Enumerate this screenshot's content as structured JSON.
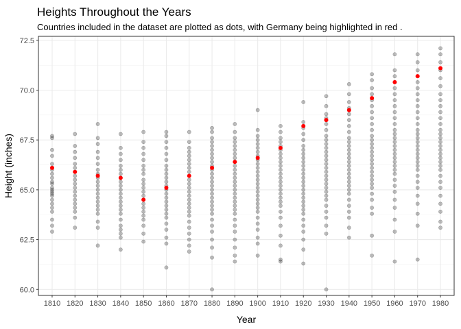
{
  "chart_data": {
    "type": "scatter",
    "title": "Heights Throughout the Years",
    "subtitle": "Countries included in the dataset are plotted as dots, with Germany being highlighted in red .",
    "xlabel": "Year",
    "ylabel": "Height (inches)",
    "x_categories": [
      "1810",
      "1820",
      "1830",
      "1840",
      "1850",
      "1860",
      "1870",
      "1880",
      "1890",
      "1900",
      "1910",
      "1920",
      "1930",
      "1940",
      "1950",
      "1960",
      "1970",
      "1980"
    ],
    "y_ticks": [
      "60.0",
      "62.5",
      "65.0",
      "67.5",
      "70.0",
      "72.5"
    ],
    "ylim": [
      59.7,
      72.7
    ],
    "grid": true,
    "colors": {
      "countries": "#000000",
      "highlight": "#ff0000",
      "grid_major": "#ebebeb",
      "grid_minor": "#f2f2f2",
      "panel_border": "#333333"
    },
    "series": [
      {
        "name": "Germany",
        "values": [
          66.1,
          65.9,
          65.7,
          65.6,
          64.5,
          65.1,
          65.7,
          66.1,
          66.4,
          66.6,
          67.1,
          68.2,
          68.5,
          69.0,
          69.6,
          70.4,
          70.7,
          71.1
        ]
      },
      {
        "values_by_year": {
          "1810": [
            67.7,
            67.6,
            67.0,
            66.7,
            66.3,
            66.0,
            65.8,
            65.6,
            65.4,
            65.3,
            65.1,
            65.0,
            64.9,
            64.8,
            64.7,
            64.5,
            64.3,
            64.1,
            63.9,
            63.5,
            63.2,
            62.9
          ],
          "1820": [
            67.8,
            67.2,
            66.9,
            66.6,
            66.3,
            66.1,
            65.9,
            65.7,
            65.5,
            65.3,
            65.1,
            64.9,
            64.7,
            64.5,
            64.3,
            64.1,
            63.9,
            63.6,
            63.1
          ],
          "1830": [
            68.3,
            67.6,
            67.3,
            66.9,
            66.6,
            66.3,
            66.0,
            65.8,
            65.6,
            65.4,
            65.2,
            65.0,
            64.8,
            64.6,
            64.4,
            64.2,
            64.0,
            63.8,
            63.4,
            63.1,
            62.2
          ],
          "1840": [
            67.8,
            67.1,
            66.8,
            66.5,
            66.2,
            66.0,
            65.8,
            65.6,
            65.4,
            65.2,
            65.0,
            64.8,
            64.6,
            64.4,
            64.2,
            64.0,
            63.8,
            63.5,
            63.2,
            63.0,
            62.8,
            62.6,
            62.0
          ],
          "1850": [
            67.9,
            67.4,
            67.1,
            66.8,
            66.5,
            66.2,
            66.0,
            65.8,
            65.5,
            65.3,
            65.1,
            64.9,
            64.7,
            64.5,
            64.3,
            64.1,
            63.9,
            63.7,
            63.5,
            63.2,
            62.8,
            62.4
          ],
          "1860": [
            67.9,
            67.7,
            67.4,
            67.1,
            66.8,
            66.5,
            66.2,
            66.0,
            65.8,
            65.6,
            65.4,
            65.2,
            65.0,
            64.8,
            64.6,
            64.4,
            64.2,
            64.0,
            63.8,
            63.6,
            63.3,
            63.0,
            62.6,
            62.3,
            61.1
          ],
          "1870": [
            67.9,
            67.4,
            67.1,
            66.9,
            66.7,
            66.5,
            66.3,
            66.1,
            65.9,
            65.7,
            65.5,
            65.3,
            65.1,
            64.9,
            64.7,
            64.5,
            64.3,
            64.1,
            63.9,
            63.7,
            63.4,
            63.1,
            62.8,
            62.5,
            62.2,
            61.9
          ],
          "1880": [
            68.1,
            67.9,
            67.6,
            67.4,
            67.2,
            67.0,
            66.8,
            66.6,
            66.4,
            66.2,
            66.0,
            65.8,
            65.6,
            65.4,
            65.2,
            65.0,
            64.8,
            64.6,
            64.4,
            64.2,
            64.0,
            63.8,
            63.5,
            63.2,
            62.9,
            62.5,
            62.1,
            61.6,
            60.0
          ],
          "1890": [
            68.3,
            67.9,
            67.6,
            67.4,
            67.2,
            67.0,
            66.8,
            66.6,
            66.4,
            66.2,
            66.0,
            65.8,
            65.6,
            65.4,
            65.2,
            65.0,
            64.8,
            64.6,
            64.4,
            64.2,
            64.0,
            63.8,
            63.5,
            63.2,
            62.9,
            62.5,
            62.1,
            61.7,
            61.4
          ],
          "1900": [
            69.0,
            68.0,
            67.7,
            67.5,
            67.3,
            67.1,
            66.9,
            66.7,
            66.5,
            66.3,
            66.1,
            65.9,
            65.7,
            65.5,
            65.3,
            65.1,
            64.9,
            64.7,
            64.5,
            64.3,
            64.1,
            63.9,
            63.6,
            63.3,
            63.0,
            62.6,
            62.3,
            61.7
          ],
          "1910": [
            68.2,
            67.9,
            67.6,
            67.4,
            67.2,
            67.0,
            66.8,
            66.6,
            66.4,
            66.2,
            66.0,
            65.8,
            65.6,
            65.4,
            65.2,
            65.0,
            64.8,
            64.6,
            64.4,
            64.2,
            63.9,
            63.6,
            63.2,
            62.7,
            62.2,
            61.5,
            61.4
          ],
          "1920": [
            69.4,
            68.4,
            68.1,
            67.8,
            67.5,
            67.2,
            67.0,
            66.8,
            66.6,
            66.4,
            66.2,
            66.0,
            65.8,
            65.6,
            65.4,
            65.2,
            65.0,
            64.8,
            64.6,
            64.4,
            64.2,
            64.0,
            63.8,
            63.5,
            63.2,
            62.9,
            62.5,
            62.0,
            61.3
          ],
          "1930": [
            69.7,
            69.2,
            68.8,
            68.6,
            68.3,
            68.0,
            67.7,
            67.5,
            67.3,
            67.1,
            66.9,
            66.7,
            66.5,
            66.3,
            66.1,
            65.9,
            65.7,
            65.5,
            65.3,
            65.1,
            64.9,
            64.7,
            64.5,
            64.2,
            63.9,
            63.6,
            63.2,
            62.8,
            60.0
          ],
          "1940": [
            70.3,
            69.8,
            69.4,
            69.1,
            68.8,
            68.5,
            68.2,
            67.9,
            67.6,
            67.4,
            67.2,
            67.0,
            66.8,
            66.6,
            66.4,
            66.2,
            66.0,
            65.8,
            65.6,
            65.4,
            65.2,
            65.0,
            64.8,
            64.5,
            64.2,
            63.9,
            63.6,
            63.1,
            62.6
          ],
          "1950": [
            70.8,
            70.5,
            70.1,
            69.8,
            69.5,
            69.2,
            68.9,
            68.6,
            68.3,
            68.0,
            67.7,
            67.5,
            67.3,
            67.1,
            66.9,
            66.7,
            66.5,
            66.3,
            66.1,
            65.9,
            65.7,
            65.5,
            65.3,
            65.1,
            64.8,
            64.5,
            64.1,
            63.8,
            62.7,
            61.7
          ],
          "1960": [
            71.8,
            71.0,
            70.7,
            70.4,
            70.1,
            69.8,
            69.5,
            69.2,
            68.9,
            68.6,
            68.3,
            68.0,
            67.8,
            67.6,
            67.4,
            67.2,
            67.0,
            66.8,
            66.6,
            66.4,
            66.2,
            66.0,
            65.8,
            65.5,
            65.2,
            64.9,
            64.5,
            64.1,
            63.5,
            62.9,
            61.4
          ],
          "1970": [
            71.8,
            71.4,
            71.0,
            70.7,
            70.4,
            70.1,
            69.8,
            69.5,
            69.2,
            68.9,
            68.6,
            68.3,
            68.0,
            67.8,
            67.6,
            67.4,
            67.2,
            67.0,
            66.8,
            66.6,
            66.4,
            66.2,
            66.0,
            65.7,
            65.4,
            65.1,
            64.7,
            64.3,
            63.8,
            63.2,
            61.5
          ],
          "1980": [
            72.1,
            71.8,
            71.4,
            71.0,
            70.6,
            70.2,
            69.8,
            69.5,
            69.2,
            68.9,
            68.6,
            68.3,
            68.0,
            67.8,
            67.6,
            67.4,
            67.2,
            67.0,
            66.8,
            66.6,
            66.4,
            66.2,
            66.0,
            65.7,
            65.4,
            65.1,
            64.7,
            64.3,
            63.9,
            63.4,
            63.1
          ]
        }
      }
    ]
  }
}
